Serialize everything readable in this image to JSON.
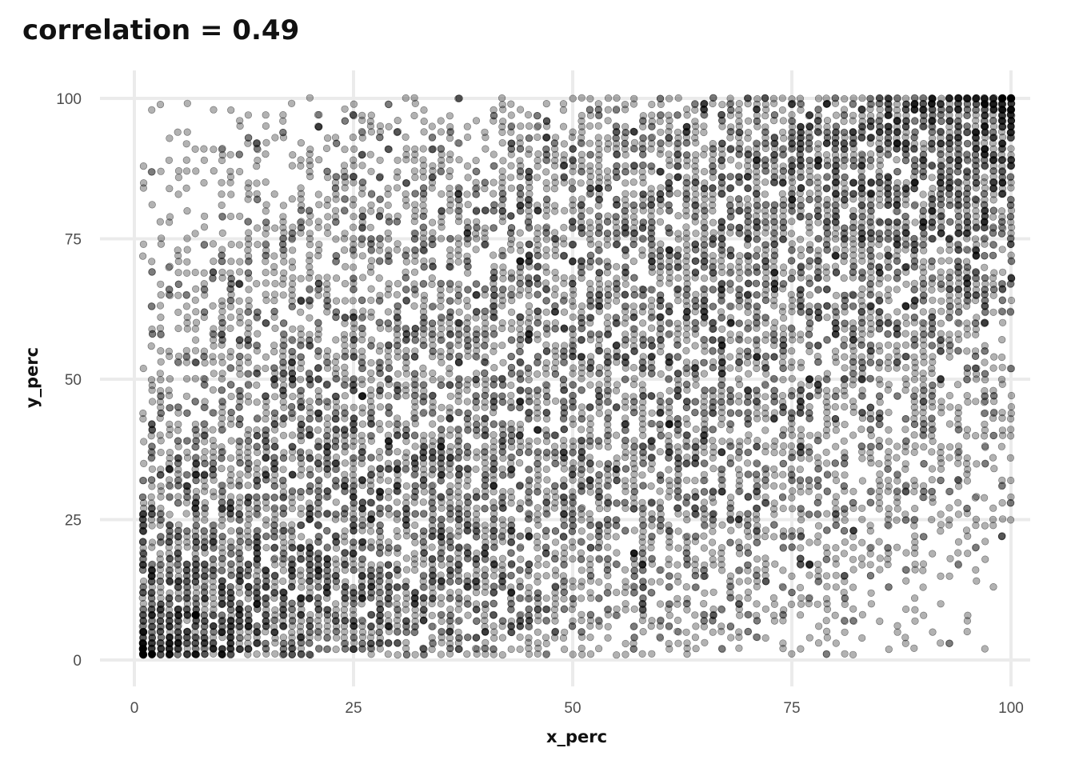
{
  "chart_data": {
    "type": "scatter",
    "title": "correlation = 0.49",
    "xlabel": "x_perc",
    "ylabel": "y_perc",
    "xlim": [
      0,
      100
    ],
    "ylim": [
      0,
      100
    ],
    "x_ticks": [
      0,
      25,
      50,
      75,
      100
    ],
    "y_ticks": [
      0,
      25,
      50,
      75,
      100
    ],
    "x_tick_labels": [
      "0",
      "25",
      "50",
      "75",
      "100"
    ],
    "y_tick_labels": [
      "0",
      "25",
      "50",
      "75",
      "100"
    ],
    "grid": true,
    "legend": "none",
    "point_color": "#000000",
    "point_opacity": 0.3,
    "correlation": 0.49,
    "x_domain": [
      1,
      100
    ],
    "y_domain": [
      1,
      100
    ],
    "n_points_estimate": 10000,
    "dense_corners": [
      "bottom-left",
      "top-right"
    ],
    "points": [
      [
        1,
        1
      ],
      [
        1,
        2
      ],
      [
        1,
        3
      ],
      [
        1,
        4
      ],
      [
        1,
        5
      ],
      [
        2,
        1
      ],
      [
        2,
        2
      ],
      [
        2,
        3
      ],
      [
        3,
        1
      ],
      [
        3,
        2
      ],
      [
        4,
        1
      ],
      [
        4,
        3
      ],
      [
        5,
        2
      ],
      [
        6,
        1
      ],
      [
        7,
        2
      ],
      [
        1,
        88
      ],
      [
        1,
        84
      ],
      [
        3,
        99
      ],
      [
        6,
        99
      ],
      [
        11,
        98
      ],
      [
        18,
        99
      ],
      [
        2,
        81
      ],
      [
        5,
        94
      ],
      [
        10,
        91
      ],
      [
        14,
        92
      ],
      [
        25,
        97
      ],
      [
        31,
        100
      ],
      [
        32,
        100
      ],
      [
        50,
        100
      ],
      [
        51,
        100
      ],
      [
        55,
        100
      ],
      [
        60,
        99
      ],
      [
        70,
        100
      ],
      [
        95,
        100
      ],
      [
        96,
        100
      ],
      [
        97,
        100
      ],
      [
        98,
        100
      ],
      [
        99,
        100
      ],
      [
        100,
        100
      ],
      [
        100,
        99
      ],
      [
        100,
        98
      ],
      [
        99,
        99
      ],
      [
        98,
        99
      ],
      [
        97,
        98
      ],
      [
        100,
        97
      ],
      [
        100,
        96
      ],
      [
        100,
        95
      ],
      [
        99,
        97
      ],
      [
        96,
        98
      ],
      [
        93,
        100
      ],
      [
        90,
        100
      ],
      [
        88,
        99
      ],
      [
        100,
        52
      ],
      [
        100,
        43
      ],
      [
        100,
        36
      ],
      [
        100,
        25
      ],
      [
        99,
        25
      ],
      [
        98,
        27
      ],
      [
        97,
        24
      ],
      [
        97,
        18
      ],
      [
        96,
        14
      ],
      [
        94,
        19
      ],
      [
        93,
        3
      ],
      [
        89,
        2
      ],
      [
        81,
        1
      ],
      [
        75,
        1
      ],
      [
        67,
        2
      ],
      [
        50,
        1
      ],
      [
        59,
        1
      ],
      [
        40,
        1
      ],
      [
        33,
        1
      ],
      [
        31,
        1
      ],
      [
        20,
        1
      ],
      [
        15,
        1
      ],
      [
        10,
        1
      ],
      [
        45,
        44
      ],
      [
        52,
        57
      ],
      [
        38,
        61
      ],
      [
        60,
        33
      ],
      [
        70,
        70
      ],
      [
        28,
        30
      ],
      [
        80,
        85
      ],
      [
        20,
        25
      ],
      [
        65,
        40
      ],
      [
        42,
        78
      ],
      [
        35,
        15
      ],
      [
        85,
        60
      ],
      [
        15,
        45
      ],
      [
        55,
        90
      ],
      [
        75,
        20
      ],
      [
        25,
        70
      ],
      [
        90,
        40
      ],
      [
        10,
        60
      ]
    ]
  }
}
